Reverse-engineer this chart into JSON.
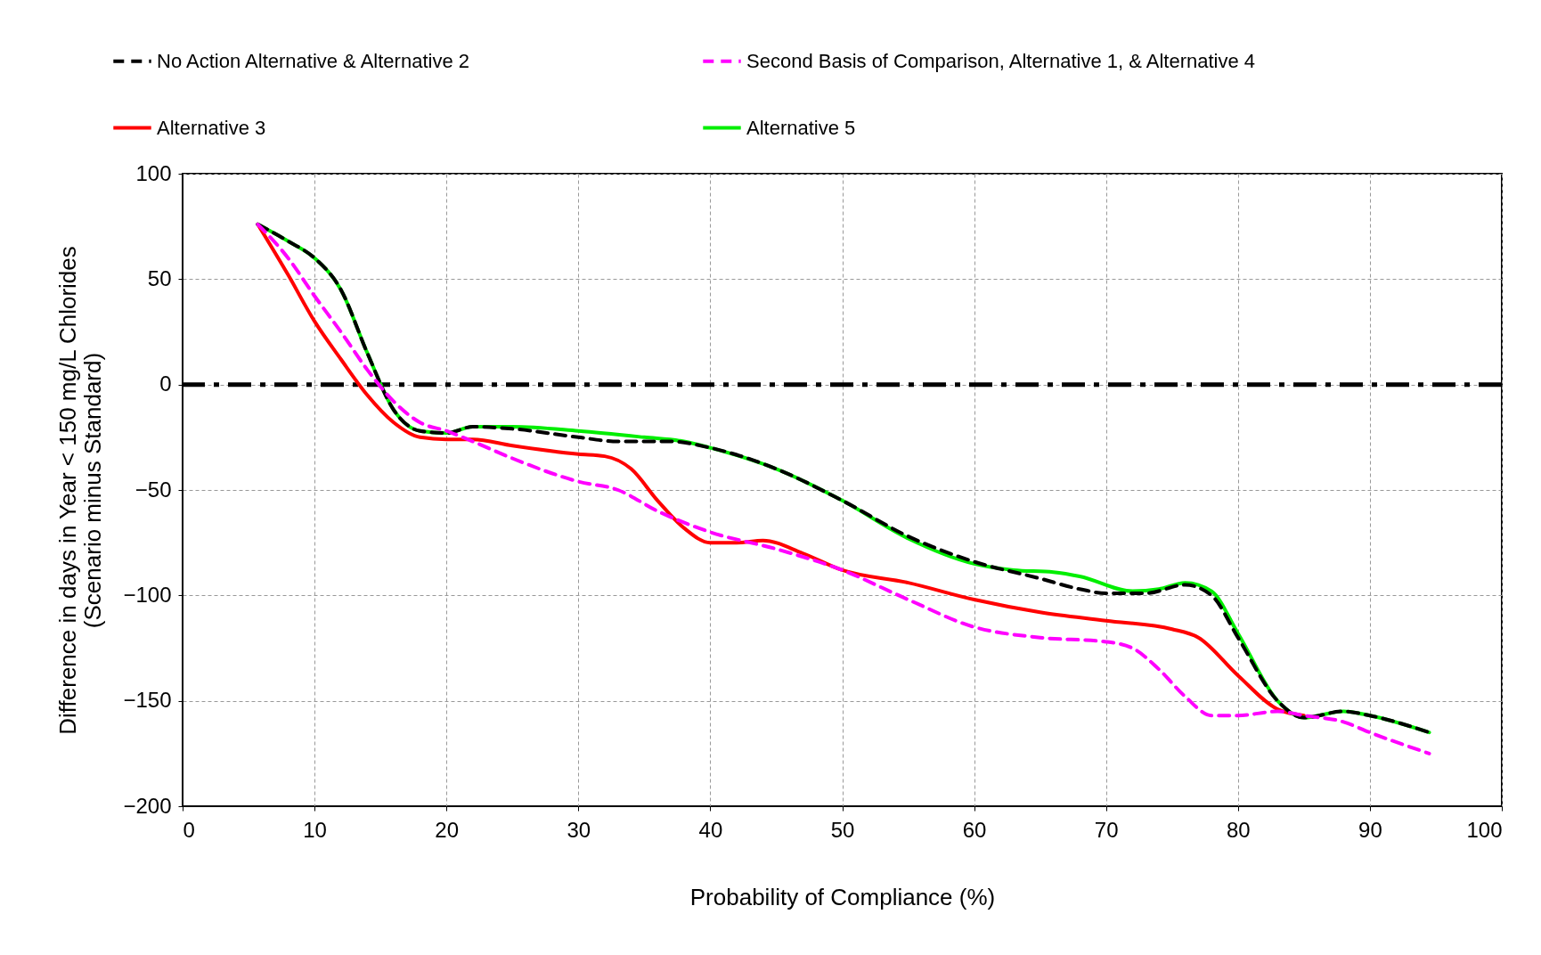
{
  "chart_data": {
    "type": "line",
    "xlabel": "Probability of Compliance (%)",
    "ylabel": "Difference in days in Year < 150 mg/L Chlorides\n(Scenario minus Standard)",
    "xlim": [
      0,
      100
    ],
    "xticks": [
      0,
      10,
      20,
      30,
      40,
      50,
      60,
      70,
      80,
      90,
      100
    ],
    "ylim": [
      -200,
      100
    ],
    "yticks": [
      -200,
      -150,
      -100,
      -50,
      0,
      50,
      100
    ],
    "grid": true,
    "legend": "top",
    "series": [
      {
        "name": "No Action Alternative & Alternative 2",
        "color": "#000000",
        "line_style": "dashed",
        "x": [
          5.7,
          8,
          10,
          12,
          14,
          16,
          18,
          20,
          22,
          25,
          30,
          33,
          37,
          40,
          45,
          50,
          55,
          60,
          65,
          68,
          70,
          73,
          76,
          78,
          80,
          83,
          85,
          88,
          90,
          94.5
        ],
        "values": [
          76,
          68,
          60,
          45,
          15,
          -12,
          -22,
          -23,
          -20,
          -21,
          -25,
          -27,
          -27,
          -30,
          -40,
          -55,
          -72,
          -84,
          -92,
          -97,
          -99,
          -99,
          -95,
          -100,
          -120,
          -150,
          -158,
          -155,
          -157,
          -165
        ]
      },
      {
        "name": "Second Basis of Comparison, Alternative 1, & Alternative 4",
        "color": "#ff00ff",
        "line_style": "dashed",
        "x": [
          5.7,
          8,
          10,
          12,
          14,
          16,
          18,
          20,
          22,
          25,
          30,
          33,
          36,
          40,
          45,
          50,
          55,
          60,
          65,
          70,
          72,
          74,
          76,
          78,
          80,
          83,
          85,
          88,
          90,
          94.5
        ],
        "values": [
          76,
          60,
          42,
          25,
          7,
          -8,
          -18,
          -22,
          -27,
          -35,
          -46,
          -50,
          -60,
          -70,
          -78,
          -88,
          -102,
          -115,
          -120,
          -122,
          -125,
          -135,
          -148,
          -157,
          -157,
          -155,
          -157,
          -160,
          -165,
          -175
        ]
      },
      {
        "name": "Alternative 3",
        "color": "#ff0000",
        "line_style": "solid",
        "x": [
          5.7,
          8,
          10,
          12,
          14,
          16,
          18,
          20,
          22,
          25,
          30,
          32,
          34,
          36,
          38,
          40,
          42,
          44,
          47,
          50,
          55,
          60,
          65,
          70,
          75,
          77,
          80,
          83,
          85
        ],
        "values": [
          76,
          52,
          30,
          12,
          -5,
          -18,
          -25,
          -26,
          -26,
          -29,
          -33,
          -34,
          -40,
          -55,
          -68,
          -75,
          -75,
          -74,
          -80,
          -88,
          -94,
          -102,
          -108,
          -112,
          -116,
          -120,
          -138,
          -154,
          -157
        ]
      },
      {
        "name": "Alternative 5",
        "color": "#00ee00",
        "line_style": "solid",
        "x": [
          5.7,
          8,
          10,
          12,
          14,
          16,
          18,
          20,
          22,
          25,
          30,
          35,
          38,
          40,
          45,
          50,
          55,
          60,
          63,
          66,
          68,
          72,
          74,
          76,
          78,
          80,
          83,
          85,
          88,
          90,
          94.5
        ],
        "values": [
          76,
          68,
          60,
          45,
          15,
          -12,
          -22,
          -23,
          -20,
          -20,
          -22,
          -25,
          -27,
          -30,
          -40,
          -55,
          -73,
          -85,
          -88,
          -89,
          -91,
          -98,
          -97,
          -94,
          -98,
          -118,
          -150,
          -158,
          -155,
          -157,
          -165
        ]
      }
    ],
    "ref_lines": [
      {
        "axis": "y",
        "value": 0,
        "color": "#000000",
        "line_style": "dashdot"
      }
    ]
  }
}
